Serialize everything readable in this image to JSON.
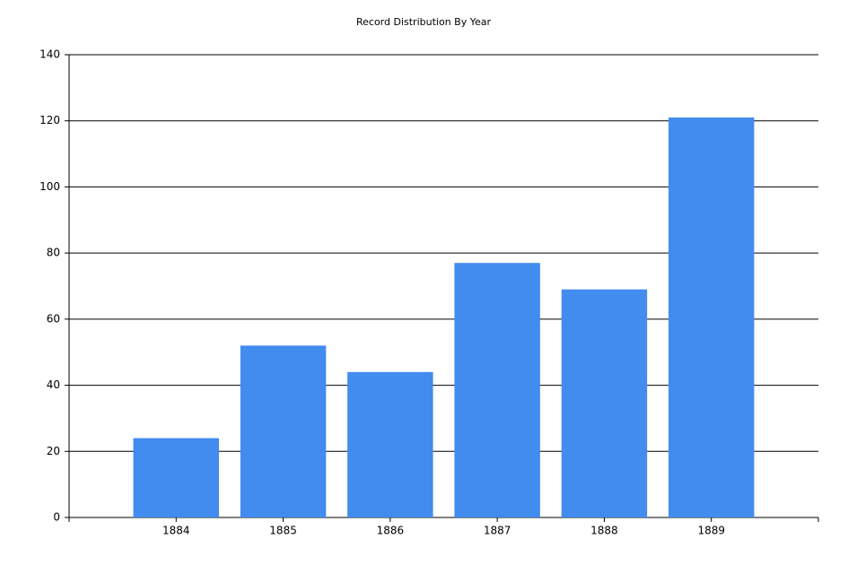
{
  "chart_data": {
    "type": "bar",
    "title": "Record Distribution By Year",
    "categories": [
      "1884",
      "1885",
      "1886",
      "1887",
      "1888",
      "1889"
    ],
    "values": [
      24,
      52,
      44,
      77,
      69,
      121
    ],
    "color": "#428bef",
    "ylim": [
      0,
      140
    ],
    "yticks": [
      0,
      20,
      40,
      60,
      80,
      100,
      120,
      140
    ],
    "grid": true
  }
}
